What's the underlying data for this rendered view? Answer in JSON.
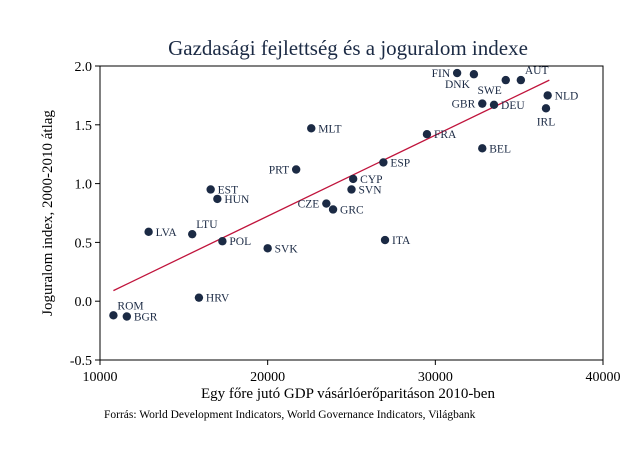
{
  "chart_data": {
    "type": "scatter",
    "title": "Gazdasági fejlettség és a joguralom indexe",
    "xlabel": "Egy főre jutó GDP vásárlóerőparitáson 2010-ben",
    "ylabel": "Joguralom index, 2000-2010 átlag",
    "xlim": [
      10000,
      40000
    ],
    "ylim": [
      -0.5,
      2.0
    ],
    "xticks": [
      10000,
      20000,
      30000,
      40000
    ],
    "yticks": [
      -0.5,
      0.0,
      0.5,
      1.0,
      1.5,
      2.0
    ],
    "ytick_labels": [
      "-0.5",
      "0.0",
      "0.5",
      "1.0",
      "1.5",
      "2.0"
    ],
    "xtick_labels": [
      "10000",
      "20000",
      "30000",
      "40000"
    ],
    "marker_color": "#1b2a44",
    "line_color": "#c0143c",
    "points": [
      {
        "label": "ROM",
        "x": 10800,
        "y": -0.12,
        "pos": "ne"
      },
      {
        "label": "BGR",
        "x": 11600,
        "y": -0.13,
        "pos": "e"
      },
      {
        "label": "LVA",
        "x": 12900,
        "y": 0.59,
        "pos": "e"
      },
      {
        "label": "LTU",
        "x": 15500,
        "y": 0.57,
        "pos": "ne"
      },
      {
        "label": "HRV",
        "x": 15900,
        "y": 0.03,
        "pos": "e"
      },
      {
        "label": "EST",
        "x": 16600,
        "y": 0.95,
        "pos": "e"
      },
      {
        "label": "HUN",
        "x": 17000,
        "y": 0.87,
        "pos": "e"
      },
      {
        "label": "POL",
        "x": 17300,
        "y": 0.51,
        "pos": "e"
      },
      {
        "label": "SVK",
        "x": 20000,
        "y": 0.45,
        "pos": "e"
      },
      {
        "label": "PRT",
        "x": 21700,
        "y": 1.12,
        "pos": "w"
      },
      {
        "label": "MLT",
        "x": 22600,
        "y": 1.47,
        "pos": "e"
      },
      {
        "label": "CZE",
        "x": 23500,
        "y": 0.83,
        "pos": "w"
      },
      {
        "label": "GRC",
        "x": 23900,
        "y": 0.78,
        "pos": "e"
      },
      {
        "label": "SVN",
        "x": 25000,
        "y": 0.95,
        "pos": "e"
      },
      {
        "label": "CYP",
        "x": 25100,
        "y": 1.04,
        "pos": "e"
      },
      {
        "label": "ESP",
        "x": 26900,
        "y": 1.18,
        "pos": "e"
      },
      {
        "label": "ITA",
        "x": 27000,
        "y": 0.52,
        "pos": "e"
      },
      {
        "label": "FRA",
        "x": 29500,
        "y": 1.42,
        "pos": "e"
      },
      {
        "label": "FIN",
        "x": 31300,
        "y": 1.94,
        "pos": "w"
      },
      {
        "label": "DNK",
        "x": 32300,
        "y": 1.93,
        "pos": "sw"
      },
      {
        "label": "GBR",
        "x": 32800,
        "y": 1.68,
        "pos": "w"
      },
      {
        "label": "BEL",
        "x": 32800,
        "y": 1.3,
        "pos": "e"
      },
      {
        "label": "DEU",
        "x": 33500,
        "y": 1.67,
        "pos": "e"
      },
      {
        "label": "SWE",
        "x": 34200,
        "y": 1.88,
        "pos": "sw"
      },
      {
        "label": "AUT",
        "x": 35100,
        "y": 1.88,
        "pos": "ne"
      },
      {
        "label": "NLD",
        "x": 36700,
        "y": 1.75,
        "pos": "e"
      },
      {
        "label": "IRL",
        "x": 36600,
        "y": 1.64,
        "pos": "s"
      }
    ],
    "trendline": {
      "x": [
        10800,
        36800
      ],
      "y": [
        0.09,
        1.88
      ]
    }
  },
  "source_note": "Forrás: World Development Indicators, World Governance Indicators, Világbank"
}
